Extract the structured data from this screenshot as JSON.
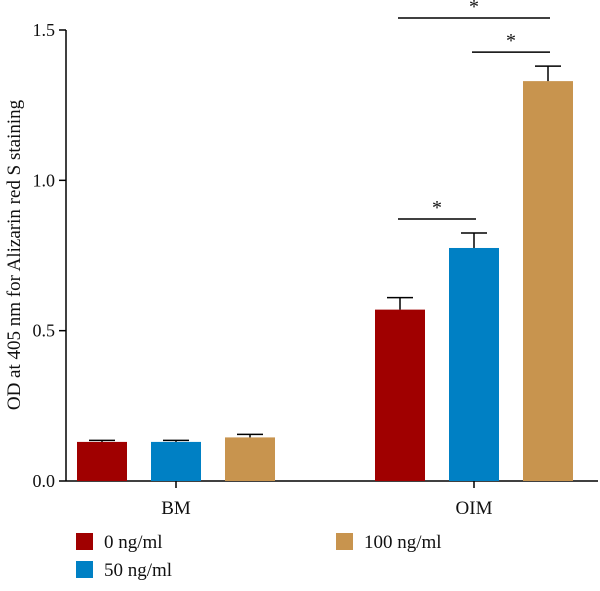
{
  "chart_data": {
    "type": "bar",
    "ylabel": "OD at 405 nm for Alizarin red S staining",
    "xlabel": "",
    "ylim": [
      0,
      1.5
    ],
    "yticks": [
      0.0,
      0.5,
      1.0,
      1.5
    ],
    "ytick_labels": [
      "0.0",
      "0.5",
      "1.0",
      "1.5"
    ],
    "categories": [
      "BM",
      "OIM"
    ],
    "series": [
      {
        "name": "0 ng/ml",
        "color": "#a00000",
        "values": [
          0.13,
          0.57
        ],
        "errors": [
          0.005,
          0.04
        ]
      },
      {
        "name": "50 ng/ml",
        "color": "#0080c4",
        "values": [
          0.13,
          0.775
        ],
        "errors": [
          0.005,
          0.05
        ]
      },
      {
        "name": "100 ng/ml",
        "color": "#c8944e",
        "values": [
          0.145,
          1.33
        ],
        "errors": [
          0.01,
          0.05
        ]
      }
    ],
    "significance": [
      {
        "category": "OIM",
        "from_series": 0,
        "to_series": 1,
        "label": "*"
      },
      {
        "category": "OIM",
        "from_series": 1,
        "to_series": 2,
        "label": "*"
      },
      {
        "category": "OIM",
        "from_series": 0,
        "to_series": 2,
        "label": "*"
      }
    ],
    "legend_position": "bottom",
    "grid": false
  }
}
